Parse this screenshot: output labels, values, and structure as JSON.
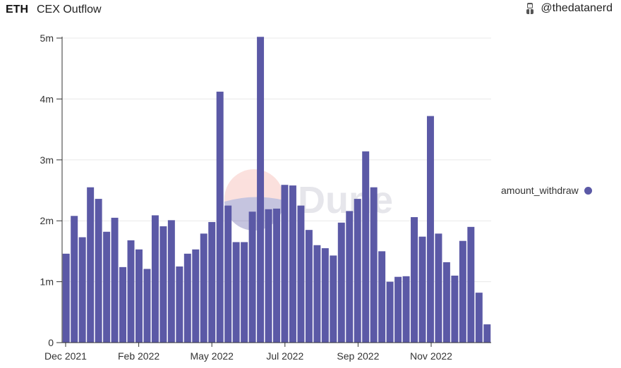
{
  "header": {
    "tag": "ETH",
    "title": "CEX Outflow",
    "author": "@thedatanerd",
    "avatar_icon": "person-avatar-icon"
  },
  "watermark": {
    "text": "Dune"
  },
  "colors": {
    "bar": "#5b59a6",
    "grid": "#e8e8e8",
    "axis": "#333333"
  },
  "chart_data": {
    "type": "bar",
    "x_tick_labels": [
      "Dec 2021",
      "Feb 2022",
      "May 2022",
      "Jul 2022",
      "Sep 2022",
      "Nov 2022"
    ],
    "y_tick_labels": [
      "0",
      "1m",
      "2m",
      "3m",
      "4m",
      "5m"
    ],
    "ylim": [
      0,
      5000000
    ],
    "grid": true,
    "legend_position": "right",
    "series": [
      {
        "name": "amount_withdraw",
        "values": [
          1460000,
          2080000,
          1730000,
          2550000,
          2360000,
          1820000,
          2050000,
          1240000,
          1680000,
          1530000,
          1210000,
          2090000,
          1910000,
          2010000,
          1250000,
          1460000,
          1530000,
          1790000,
          1980000,
          4120000,
          2250000,
          1650000,
          1650000,
          2150000,
          5020000,
          2190000,
          2200000,
          2590000,
          2580000,
          2250000,
          1850000,
          1600000,
          1550000,
          1430000,
          1970000,
          2160000,
          2360000,
          3140000,
          2550000,
          1500000,
          1000000,
          1080000,
          1090000,
          2060000,
          1740000,
          3720000,
          1790000,
          1320000,
          1100000,
          1670000,
          1900000,
          820000,
          300000
        ]
      }
    ]
  }
}
